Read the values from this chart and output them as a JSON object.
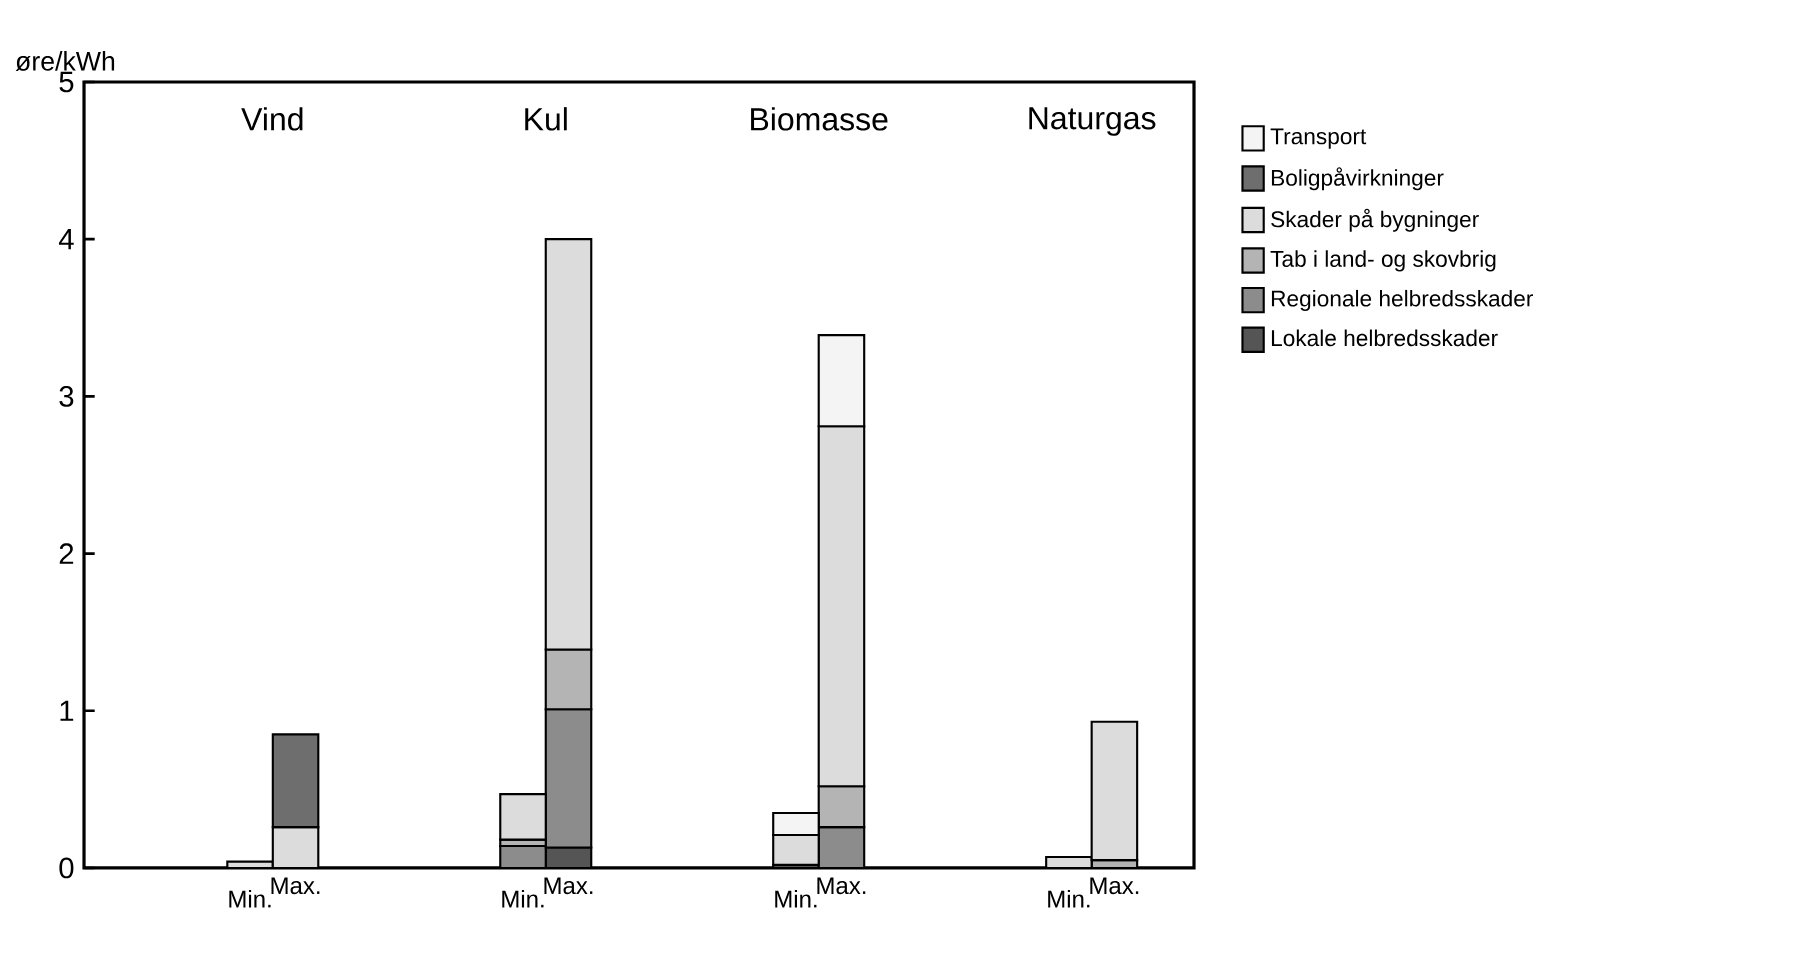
{
  "chart_data": {
    "type": "bar",
    "stacked": true,
    "ylabel": "øre/kWh",
    "categories": [
      "Min.",
      "Max.",
      null,
      null,
      null,
      null,
      "Min.",
      "Max.",
      null,
      null,
      null,
      null,
      "Min.",
      "Max.",
      null,
      null,
      null,
      null,
      "Min.",
      "Max."
    ],
    "annotations": [
      "Vind",
      "Kul",
      "Biomasse",
      "Naturgas"
    ],
    "series": [
      {
        "name": "Lokale helbredsskader",
        "color": "#555555",
        "values": [
          null,
          null,
          null,
          null,
          null,
          null,
          null,
          0.13,
          null,
          null,
          null,
          null,
          0.02,
          null,
          null,
          null,
          null,
          null,
          null,
          null
        ]
      },
      {
        "name": "Regionale helbredsskader",
        "color": "#8c8c8c",
        "values": [
          null,
          null,
          null,
          null,
          null,
          null,
          0.14,
          0.88,
          null,
          null,
          null,
          null,
          null,
          0.26,
          null,
          null,
          null,
          null,
          null,
          null
        ]
      },
      {
        "name": "Tab i land- og skovbrig",
        "color": "#b4b4b4",
        "values": [
          null,
          null,
          null,
          null,
          null,
          null,
          0.04,
          0.38,
          null,
          null,
          null,
          null,
          null,
          0.26,
          null,
          null,
          null,
          null,
          null,
          0.05
        ]
      },
      {
        "name": "Skader på bygninger",
        "color": "#dcdcdc",
        "values": [
          0.04,
          0.26,
          null,
          null,
          null,
          null,
          0.29,
          2.61,
          null,
          null,
          null,
          null,
          0.19,
          2.29,
          null,
          null,
          null,
          null,
          0.07,
          0.88
        ]
      },
      {
        "name": "Boligpåvirkninger",
        "color": "#6e6e6e",
        "values": [
          null,
          0.59,
          null,
          null,
          null,
          null,
          null,
          null,
          null,
          null,
          null,
          null,
          null,
          null,
          null,
          null,
          null,
          null,
          null,
          null
        ]
      },
      {
        "name": "Transport",
        "color": "#f4f4f4",
        "values": [
          null,
          null,
          null,
          null,
          null,
          null,
          null,
          null,
          null,
          null,
          null,
          null,
          0.14,
          0.58,
          null,
          null,
          null,
          null,
          null,
          null
        ]
      }
    ],
    "ylim": [
      0,
      5
    ],
    "yticks": [
      0,
      1,
      2,
      3,
      4,
      5
    ],
    "grid": false,
    "legend": "right"
  }
}
